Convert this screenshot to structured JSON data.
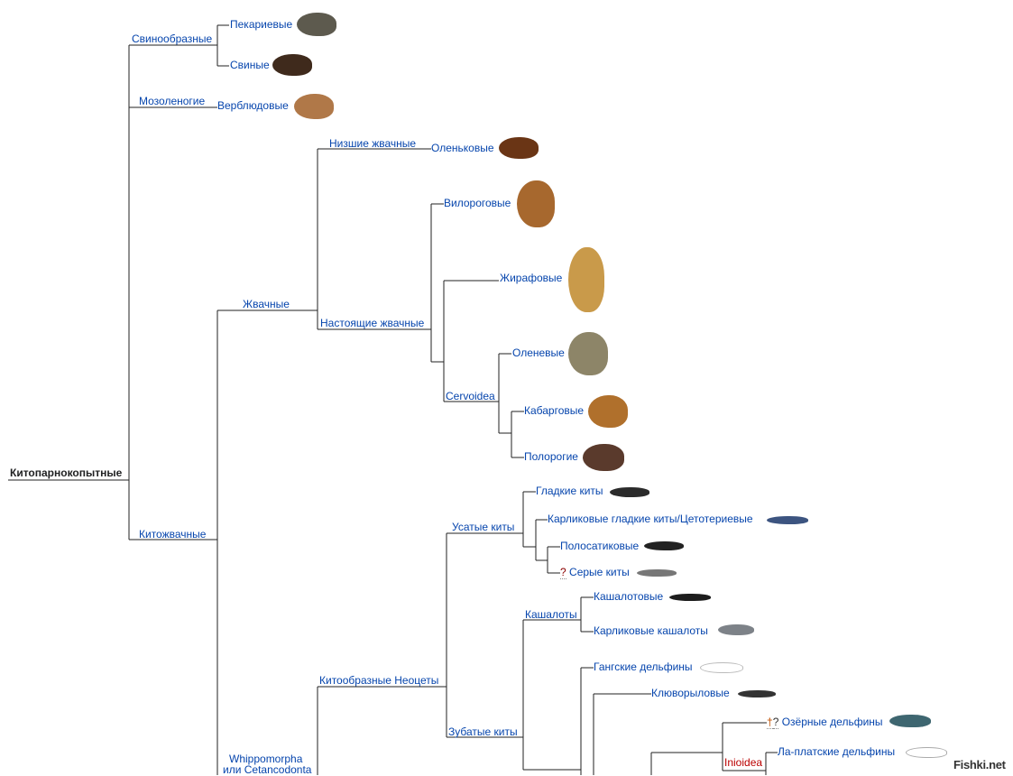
{
  "tree": {
    "root": "Китопарнокопытные",
    "suiformes": "Свинообразные",
    "peccaries": "Пекариевые",
    "pigs": "Свиные",
    "tylopoda": "Мозоленогие",
    "camels": "Верблюдовые",
    "cetruminantia": "Китожвачные",
    "ruminants": "Жвачные",
    "lower_ruminants": "Низшие жвачные",
    "chevrotains": "Оленьковые",
    "pecora": "Настоящие жвачные",
    "pronghorns": "Вилороговые",
    "giraffes": "Жирафовые",
    "cervoidea": "Cervoidea",
    "deer": "Оленевые",
    "musk_deer": "Кабарговые",
    "bovids": "Полорогие",
    "whippomorpha_1": "Whippomorpha",
    "whippomorpha_2": "или Cetancodonta",
    "neoceti": "Китообразные Неоцеты",
    "baleen": "Усатые киты",
    "right_whales": "Гладкие киты",
    "pygmy_right": "Карликовые гладкие киты/Цетотериевые",
    "rorquals": "Полосатиковые",
    "gray_mark": "?",
    "gray_whales": "Серые киты",
    "sperm_group": "Кашалоты",
    "sperm_whales": "Кашалотовые",
    "pygmy_sperm": "Карликовые кашалоты",
    "toothed": "Зубатые киты",
    "ganges": "Гангские дельфины",
    "beaked": "Клюворыловые",
    "lake_dagger": "†",
    "lake_mark": "?",
    "lake_dolphins": "Озёрные дельфины",
    "inioidea": "Inioidea",
    "la_plata": "Ла-платские дельфины"
  },
  "watermark": "Fishki.net",
  "colors": {
    "link": "#0645ad",
    "red_link": "#ba0000",
    "line": "#222222"
  }
}
